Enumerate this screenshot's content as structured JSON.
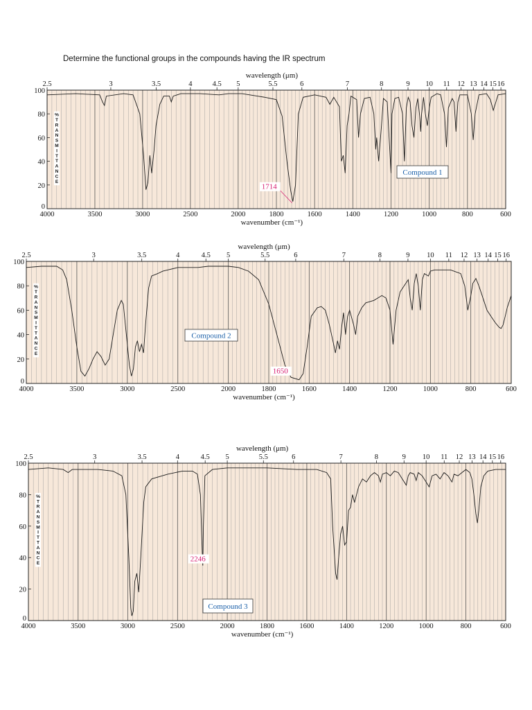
{
  "question": "Determine the functional groups in the compounds having the IR spectrum",
  "colors": {
    "background": "#f7e8da",
    "grid": "#9a9a9a",
    "curve": "#1a1a1a",
    "compound_label": "#1a5fa8",
    "peak_label": "#d6196e"
  },
  "chart_data": [
    {
      "type": "line",
      "title": "Compound 1",
      "xlabel": "wavenumber (cm⁻¹)",
      "x2label": "wavelength (μm)",
      "ylabel": "%TRANSMITTANCE",
      "ylim": [
        0,
        100
      ],
      "x_ticks": [
        "4000",
        "3500",
        "3000",
        "2500",
        "2000",
        "1800",
        "1600",
        "1400",
        "1200",
        "1000",
        "800",
        "600"
      ],
      "x2_ticks": [
        "2.5",
        "3",
        "3.5",
        "4",
        "4.5",
        "5",
        "5.5",
        "6",
        "7",
        "8",
        "9",
        "10",
        "11",
        "12",
        "13",
        "14",
        "15",
        "16"
      ],
      "y_ticks": [
        "0",
        "20",
        "40",
        "60",
        "80",
        "100"
      ],
      "annotations": [
        {
          "text": "1714",
          "x": 1714,
          "y": 6
        }
      ],
      "points": [
        [
          4000,
          96
        ],
        [
          3700,
          97
        ],
        [
          3450,
          96
        ],
        [
          3420,
          90
        ],
        [
          3400,
          87
        ],
        [
          3380,
          95
        ],
        [
          3200,
          97
        ],
        [
          3100,
          96
        ],
        [
          3030,
          80
        ],
        [
          2990,
          45
        ],
        [
          2965,
          16
        ],
        [
          2945,
          22
        ],
        [
          2925,
          45
        ],
        [
          2905,
          30
        ],
        [
          2880,
          50
        ],
        [
          2860,
          70
        ],
        [
          2820,
          88
        ],
        [
          2780,
          95
        ],
        [
          2720,
          95
        ],
        [
          2700,
          90
        ],
        [
          2680,
          95
        ],
        [
          2600,
          97
        ],
        [
          2400,
          97
        ],
        [
          2200,
          96
        ],
        [
          2100,
          97
        ],
        [
          1980,
          97
        ],
        [
          1900,
          95
        ],
        [
          1860,
          94
        ],
        [
          1800,
          92
        ],
        [
          1770,
          78
        ],
        [
          1745,
          40
        ],
        [
          1725,
          15
        ],
        [
          1714,
          6
        ],
        [
          1700,
          20
        ],
        [
          1685,
          80
        ],
        [
          1660,
          94
        ],
        [
          1600,
          96
        ],
        [
          1540,
          94
        ],
        [
          1520,
          88
        ],
        [
          1500,
          94
        ],
        [
          1470,
          86
        ],
        [
          1460,
          40
        ],
        [
          1450,
          45
        ],
        [
          1440,
          30
        ],
        [
          1430,
          70
        ],
        [
          1420,
          80
        ],
        [
          1410,
          95
        ],
        [
          1380,
          92
        ],
        [
          1370,
          60
        ],
        [
          1360,
          80
        ],
        [
          1340,
          93
        ],
        [
          1310,
          94
        ],
        [
          1290,
          80
        ],
        [
          1280,
          50
        ],
        [
          1275,
          60
        ],
        [
          1265,
          40
        ],
        [
          1250,
          70
        ],
        [
          1240,
          93
        ],
        [
          1220,
          90
        ],
        [
          1210,
          60
        ],
        [
          1200,
          30
        ],
        [
          1195,
          80
        ],
        [
          1180,
          93
        ],
        [
          1160,
          94
        ],
        [
          1140,
          80
        ],
        [
          1130,
          40
        ],
        [
          1120,
          85
        ],
        [
          1110,
          94
        ],
        [
          1100,
          90
        ],
        [
          1090,
          70
        ],
        [
          1080,
          60
        ],
        [
          1070,
          85
        ],
        [
          1060,
          93
        ],
        [
          1050,
          78
        ],
        [
          1045,
          65
        ],
        [
          1040,
          80
        ],
        [
          1030,
          94
        ],
        [
          1020,
          80
        ],
        [
          1010,
          70
        ],
        [
          1000,
          85
        ],
        [
          990,
          94
        ],
        [
          960,
          97
        ],
        [
          940,
          96
        ],
        [
          920,
          80
        ],
        [
          910,
          52
        ],
        [
          900,
          85
        ],
        [
          880,
          93
        ],
        [
          870,
          90
        ],
        [
          860,
          65
        ],
        [
          850,
          90
        ],
        [
          840,
          96
        ],
        [
          800,
          96
        ],
        [
          780,
          80
        ],
        [
          770,
          58
        ],
        [
          760,
          80
        ],
        [
          740,
          96
        ],
        [
          700,
          97
        ],
        [
          680,
          92
        ],
        [
          665,
          83
        ],
        [
          655,
          88
        ],
        [
          640,
          96
        ],
        [
          600,
          97
        ]
      ]
    },
    {
      "type": "line",
      "title": "Compound 2",
      "xlabel": "wavenumber (cm⁻¹)",
      "x2label": "wavelength (μm)",
      "ylabel": "%TRANSMITTANCE",
      "ylim": [
        0,
        100
      ],
      "x_ticks": [
        "4000",
        "3500",
        "3000",
        "2500",
        "2000",
        "1800",
        "1600",
        "1400",
        "1200",
        "1000",
        "800",
        "600"
      ],
      "x2_ticks": [
        "2.5",
        "3",
        "3.5",
        "4",
        "4.5",
        "5",
        "5.5",
        "6",
        "7",
        "8",
        "9",
        "10",
        "11",
        "12",
        "13",
        "14",
        "15",
        "16"
      ],
      "y_ticks": [
        "0",
        "20",
        "40",
        "60",
        "80",
        "100"
      ],
      "annotations": [
        {
          "text": "1650",
          "x": 1650,
          "y": 3
        }
      ],
      "points": [
        [
          4000,
          95
        ],
        [
          3850,
          96
        ],
        [
          3700,
          96
        ],
        [
          3640,
          93
        ],
        [
          3600,
          85
        ],
        [
          3550,
          60
        ],
        [
          3500,
          30
        ],
        [
          3460,
          10
        ],
        [
          3420,
          6
        ],
        [
          3380,
          12
        ],
        [
          3340,
          20
        ],
        [
          3300,
          26
        ],
        [
          3260,
          22
        ],
        [
          3220,
          15
        ],
        [
          3180,
          20
        ],
        [
          3140,
          40
        ],
        [
          3100,
          60
        ],
        [
          3060,
          68
        ],
        [
          3040,
          65
        ],
        [
          3010,
          40
        ],
        [
          2980,
          15
        ],
        [
          2960,
          6
        ],
        [
          2940,
          12
        ],
        [
          2920,
          30
        ],
        [
          2900,
          35
        ],
        [
          2880,
          26
        ],
        [
          2860,
          32
        ],
        [
          2840,
          25
        ],
        [
          2820,
          48
        ],
        [
          2790,
          78
        ],
        [
          2760,
          88
        ],
        [
          2700,
          90
        ],
        [
          2650,
          92
        ],
        [
          2600,
          93
        ],
        [
          2500,
          95
        ],
        [
          2300,
          95
        ],
        [
          2200,
          96
        ],
        [
          2100,
          96
        ],
        [
          2000,
          96
        ],
        [
          1950,
          95
        ],
        [
          1900,
          92
        ],
        [
          1850,
          85
        ],
        [
          1800,
          65
        ],
        [
          1760,
          40
        ],
        [
          1720,
          15
        ],
        [
          1690,
          5
        ],
        [
          1650,
          3
        ],
        [
          1630,
          8
        ],
        [
          1610,
          30
        ],
        [
          1590,
          55
        ],
        [
          1560,
          62
        ],
        [
          1540,
          63
        ],
        [
          1520,
          60
        ],
        [
          1500,
          48
        ],
        [
          1480,
          33
        ],
        [
          1470,
          25
        ],
        [
          1460,
          35
        ],
        [
          1450,
          28
        ],
        [
          1440,
          45
        ],
        [
          1430,
          58
        ],
        [
          1420,
          40
        ],
        [
          1410,
          55
        ],
        [
          1400,
          60
        ],
        [
          1380,
          48
        ],
        [
          1370,
          40
        ],
        [
          1360,
          55
        ],
        [
          1340,
          62
        ],
        [
          1320,
          66
        ],
        [
          1300,
          67
        ],
        [
          1280,
          68
        ],
        [
          1260,
          70
        ],
        [
          1240,
          72
        ],
        [
          1220,
          70
        ],
        [
          1200,
          60
        ],
        [
          1185,
          32
        ],
        [
          1170,
          60
        ],
        [
          1150,
          75
        ],
        [
          1130,
          80
        ],
        [
          1110,
          85
        ],
        [
          1100,
          70
        ],
        [
          1090,
          60
        ],
        [
          1080,
          82
        ],
        [
          1070,
          90
        ],
        [
          1060,
          80
        ],
        [
          1050,
          60
        ],
        [
          1040,
          85
        ],
        [
          1030,
          90
        ],
        [
          1010,
          88
        ],
        [
          1000,
          92
        ],
        [
          980,
          93
        ],
        [
          900,
          93
        ],
        [
          850,
          90
        ],
        [
          830,
          80
        ],
        [
          815,
          60
        ],
        [
          800,
          72
        ],
        [
          790,
          82
        ],
        [
          775,
          86
        ],
        [
          760,
          80
        ],
        [
          740,
          70
        ],
        [
          720,
          60
        ],
        [
          700,
          55
        ],
        [
          680,
          50
        ],
        [
          660,
          46
        ],
        [
          650,
          45
        ],
        [
          640,
          48
        ],
        [
          630,
          55
        ],
        [
          620,
          62
        ],
        [
          600,
          72
        ]
      ]
    },
    {
      "type": "line",
      "title": "Compound 3",
      "xlabel": "wavenumber (cm⁻¹)",
      "x2label": "wavelength (μm)",
      "ylabel": "%TRANSMITTANCE",
      "ylim": [
        0,
        100
      ],
      "x_ticks": [
        "4000",
        "3500",
        "3000",
        "2500",
        "2000",
        "1800",
        "1600",
        "1400",
        "1200",
        "1000",
        "800",
        "600"
      ],
      "x2_ticks": [
        "2.5",
        "3",
        "3.5",
        "4",
        "4.5",
        "5",
        "5.5",
        "6",
        "7",
        "8",
        "9",
        "10",
        "11",
        "12",
        "13",
        "14",
        "15",
        "16"
      ],
      "y_ticks": [
        "0",
        "20",
        "40",
        "60",
        "80",
        "100"
      ],
      "annotations": [
        {
          "text": "2246",
          "x": 2246,
          "y": 35
        }
      ],
      "points": [
        [
          4000,
          96
        ],
        [
          3800,
          97
        ],
        [
          3650,
          96
        ],
        [
          3600,
          94
        ],
        [
          3560,
          96
        ],
        [
          3500,
          96
        ],
        [
          3300,
          96
        ],
        [
          3150,
          95
        ],
        [
          3060,
          92
        ],
        [
          3020,
          80
        ],
        [
          2990,
          40
        ],
        [
          2970,
          8
        ],
        [
          2960,
          3
        ],
        [
          2945,
          6
        ],
        [
          2930,
          25
        ],
        [
          2910,
          30
        ],
        [
          2890,
          18
        ],
        [
          2870,
          40
        ],
        [
          2840,
          75
        ],
        [
          2820,
          85
        ],
        [
          2760,
          90
        ],
        [
          2600,
          93
        ],
        [
          2450,
          95
        ],
        [
          2350,
          95
        ],
        [
          2300,
          93
        ],
        [
          2270,
          80
        ],
        [
          2250,
          40
        ],
        [
          2246,
          35
        ],
        [
          2240,
          60
        ],
        [
          2225,
          92
        ],
        [
          2150,
          96
        ],
        [
          2000,
          97
        ],
        [
          1800,
          97
        ],
        [
          1650,
          96
        ],
        [
          1550,
          96
        ],
        [
          1500,
          94
        ],
        [
          1480,
          90
        ],
        [
          1470,
          60
        ],
        [
          1460,
          40
        ],
        [
          1455,
          30
        ],
        [
          1448,
          26
        ],
        [
          1440,
          40
        ],
        [
          1430,
          55
        ],
        [
          1420,
          60
        ],
        [
          1410,
          48
        ],
        [
          1400,
          50
        ],
        [
          1390,
          70
        ],
        [
          1380,
          72
        ],
        [
          1370,
          80
        ],
        [
          1360,
          75
        ],
        [
          1340,
          85
        ],
        [
          1320,
          90
        ],
        [
          1300,
          88
        ],
        [
          1280,
          92
        ],
        [
          1260,
          94
        ],
        [
          1240,
          92
        ],
        [
          1230,
          88
        ],
        [
          1220,
          93
        ],
        [
          1200,
          94
        ],
        [
          1180,
          92
        ],
        [
          1160,
          95
        ],
        [
          1140,
          94
        ],
        [
          1120,
          90
        ],
        [
          1100,
          86
        ],
        [
          1090,
          92
        ],
        [
          1080,
          94
        ],
        [
          1060,
          93
        ],
        [
          1050,
          89
        ],
        [
          1040,
          94
        ],
        [
          1020,
          92
        ],
        [
          1000,
          88
        ],
        [
          985,
          85
        ],
        [
          970,
          92
        ],
        [
          950,
          93
        ],
        [
          930,
          90
        ],
        [
          910,
          94
        ],
        [
          890,
          92
        ],
        [
          870,
          88
        ],
        [
          860,
          93
        ],
        [
          840,
          92
        ],
        [
          820,
          94
        ],
        [
          800,
          96
        ],
        [
          780,
          94
        ],
        [
          770,
          90
        ],
        [
          760,
          80
        ],
        [
          750,
          68
        ],
        [
          742,
          62
        ],
        [
          735,
          70
        ],
        [
          725,
          85
        ],
        [
          710,
          92
        ],
        [
          690,
          95
        ],
        [
          650,
          96
        ],
        [
          600,
          96
        ]
      ]
    }
  ]
}
